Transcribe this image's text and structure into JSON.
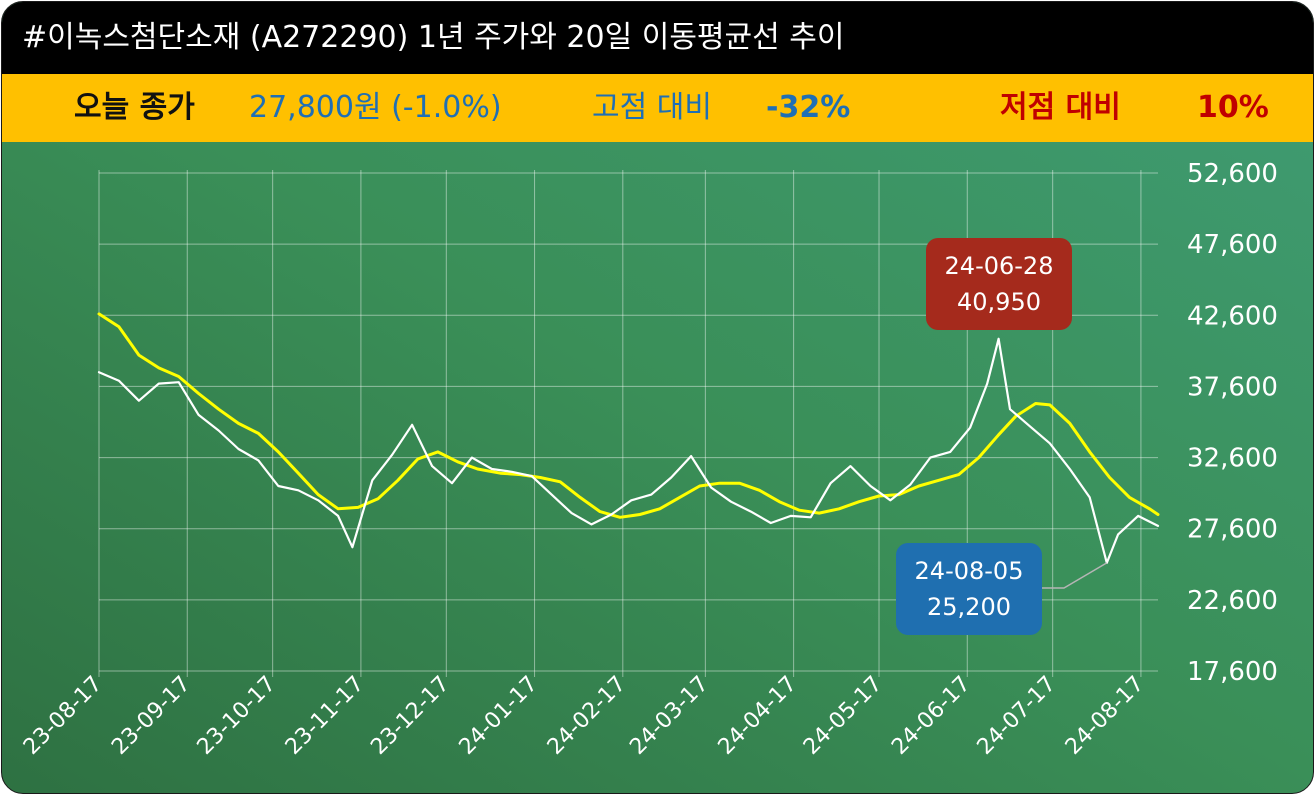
{
  "title": "#이녹스첨단소재 (A272290) 1년 주가와 20일 이동평균선 추이",
  "info": {
    "close_label": "오늘 종가",
    "close_value": "27,800원 (-1.0%)",
    "high_label": "고점 대비",
    "high_value": "-32%",
    "low_label": "저점 대비",
    "low_value": "10%"
  },
  "colors": {
    "price_line": "#ffffff",
    "ma_line": "#ffff00",
    "high_callout": "#a52a1c",
    "low_callout": "#1f6fb0",
    "title_bg": "#000000",
    "info_bg": "#ffc000"
  },
  "chart_data": {
    "type": "line",
    "x_start": "2023-08-17",
    "x_end": "2024-08-23",
    "ylim": [
      17600,
      52600
    ],
    "y_ticks": [
      "52,600",
      "47,600",
      "42,600",
      "37,600",
      "32,600",
      "27,600",
      "22,600",
      "17,600"
    ],
    "x_ticks": [
      "23-08-17",
      "23-09-17",
      "23-10-17",
      "23-11-17",
      "23-12-17",
      "24-01-17",
      "24-02-17",
      "24-03-17",
      "24-04-17",
      "24-05-17",
      "24-06-17",
      "24-07-17",
      "24-08-17"
    ],
    "grid": true,
    "series": [
      {
        "key": "price",
        "color": "#ffffff",
        "points": [
          [
            "2023-08-17",
            38600
          ],
          [
            "2023-08-24",
            38000
          ],
          [
            "2023-08-31",
            36600
          ],
          [
            "2023-09-07",
            37800
          ],
          [
            "2023-09-14",
            37900
          ],
          [
            "2023-09-21",
            35600
          ],
          [
            "2023-09-28",
            34500
          ],
          [
            "2023-10-05",
            33200
          ],
          [
            "2023-10-12",
            32400
          ],
          [
            "2023-10-19",
            30600
          ],
          [
            "2023-10-26",
            30300
          ],
          [
            "2023-11-02",
            29600
          ],
          [
            "2023-11-09",
            28500
          ],
          [
            "2023-11-14",
            26300
          ],
          [
            "2023-11-21",
            31000
          ],
          [
            "2023-11-28",
            32800
          ],
          [
            "2023-12-05",
            34900
          ],
          [
            "2023-12-12",
            32000
          ],
          [
            "2023-12-19",
            30800
          ],
          [
            "2023-12-26",
            32600
          ],
          [
            "2024-01-02",
            31800
          ],
          [
            "2024-01-09",
            31600
          ],
          [
            "2024-01-16",
            31300
          ],
          [
            "2024-01-23",
            30000
          ],
          [
            "2024-01-30",
            28700
          ],
          [
            "2024-02-06",
            27900
          ],
          [
            "2024-02-13",
            28600
          ],
          [
            "2024-02-20",
            29600
          ],
          [
            "2024-02-27",
            30000
          ],
          [
            "2024-03-05",
            31200
          ],
          [
            "2024-03-12",
            32700
          ],
          [
            "2024-03-19",
            30500
          ],
          [
            "2024-03-26",
            29500
          ],
          [
            "2024-04-02",
            28800
          ],
          [
            "2024-04-09",
            28000
          ],
          [
            "2024-04-16",
            28500
          ],
          [
            "2024-04-23",
            28400
          ],
          [
            "2024-04-30",
            30800
          ],
          [
            "2024-05-07",
            32000
          ],
          [
            "2024-05-14",
            30600
          ],
          [
            "2024-05-21",
            29600
          ],
          [
            "2024-05-28",
            30700
          ],
          [
            "2024-06-04",
            32600
          ],
          [
            "2024-06-11",
            33000
          ],
          [
            "2024-06-18",
            34700
          ],
          [
            "2024-06-24",
            37800
          ],
          [
            "2024-06-28",
            40950
          ],
          [
            "2024-07-02",
            36000
          ],
          [
            "2024-07-09",
            34800
          ],
          [
            "2024-07-16",
            33600
          ],
          [
            "2024-07-23",
            31800
          ],
          [
            "2024-07-30",
            29800
          ],
          [
            "2024-08-05",
            25200
          ],
          [
            "2024-08-09",
            27200
          ],
          [
            "2024-08-16",
            28500
          ],
          [
            "2024-08-23",
            27800
          ]
        ]
      },
      {
        "key": "ma20",
        "color": "#ffff00",
        "points": [
          [
            "2023-08-17",
            42700
          ],
          [
            "2023-08-24",
            41800
          ],
          [
            "2023-08-31",
            39800
          ],
          [
            "2023-09-07",
            38900
          ],
          [
            "2023-09-14",
            38300
          ],
          [
            "2023-09-21",
            37100
          ],
          [
            "2023-09-28",
            36000
          ],
          [
            "2023-10-05",
            35000
          ],
          [
            "2023-10-12",
            34300
          ],
          [
            "2023-10-19",
            33000
          ],
          [
            "2023-10-26",
            31500
          ],
          [
            "2023-11-02",
            30000
          ],
          [
            "2023-11-09",
            29000
          ],
          [
            "2023-11-16",
            29100
          ],
          [
            "2023-11-23",
            29700
          ],
          [
            "2023-11-30",
            31000
          ],
          [
            "2023-12-07",
            32500
          ],
          [
            "2023-12-14",
            33000
          ],
          [
            "2023-12-21",
            32300
          ],
          [
            "2023-12-28",
            31800
          ],
          [
            "2024-01-05",
            31500
          ],
          [
            "2024-01-12",
            31400
          ],
          [
            "2024-01-19",
            31200
          ],
          [
            "2024-01-26",
            30900
          ],
          [
            "2024-02-02",
            29800
          ],
          [
            "2024-02-09",
            28800
          ],
          [
            "2024-02-16",
            28400
          ],
          [
            "2024-02-23",
            28600
          ],
          [
            "2024-03-01",
            29000
          ],
          [
            "2024-03-08",
            29800
          ],
          [
            "2024-03-15",
            30600
          ],
          [
            "2024-03-22",
            30800
          ],
          [
            "2024-03-29",
            30800
          ],
          [
            "2024-04-05",
            30300
          ],
          [
            "2024-04-12",
            29500
          ],
          [
            "2024-04-19",
            28900
          ],
          [
            "2024-04-26",
            28700
          ],
          [
            "2024-05-03",
            29000
          ],
          [
            "2024-05-10",
            29500
          ],
          [
            "2024-05-17",
            29900
          ],
          [
            "2024-05-24",
            30000
          ],
          [
            "2024-05-31",
            30600
          ],
          [
            "2024-06-07",
            31000
          ],
          [
            "2024-06-14",
            31400
          ],
          [
            "2024-06-21",
            32600
          ],
          [
            "2024-06-28",
            34200
          ],
          [
            "2024-07-04",
            35500
          ],
          [
            "2024-07-11",
            36400
          ],
          [
            "2024-07-16",
            36300
          ],
          [
            "2024-07-23",
            35000
          ],
          [
            "2024-07-30",
            33000
          ],
          [
            "2024-08-06",
            31200
          ],
          [
            "2024-08-13",
            29800
          ],
          [
            "2024-08-20",
            29000
          ],
          [
            "2024-08-23",
            28600
          ]
        ]
      }
    ],
    "annotations": [
      {
        "key": "high",
        "date_label": "24-06-28",
        "value_label": "40,950",
        "x": "2024-06-28",
        "y": 40950
      },
      {
        "key": "low",
        "date_label": "24-08-05",
        "value_label": "25,200",
        "x": "2024-08-05",
        "y": 25200
      }
    ]
  }
}
